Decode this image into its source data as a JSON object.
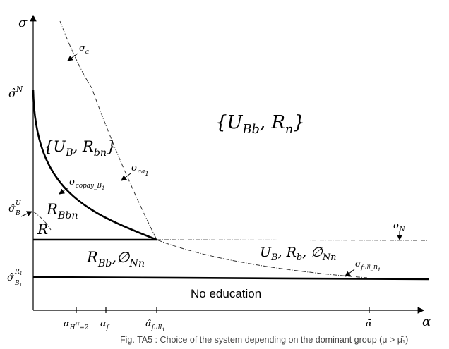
{
  "labels": {
    "sigma_axis": "σ",
    "alpha_axis": "α",
    "sigma_a": {
      "base": "σ",
      "sub": "a"
    },
    "sigma_N_hat": {
      "base": "σ̂",
      "sup": "N"
    },
    "region_UBb_Rn": {
      "open": "{",
      "base1": "U",
      "sub1": "Bb",
      "sep": ", ",
      "base2": "R",
      "sub2": "n",
      "close": "}"
    },
    "region_UB_Rbn": {
      "open": "{",
      "base1": "U",
      "sub1": "B",
      "sep": ", ",
      "base2": "R",
      "sub2": "bn",
      "close": "}"
    },
    "sigma_aa1": {
      "base": "σ",
      "sub": "aa",
      "subsub": "1"
    },
    "sigma_copay": {
      "base": "σ",
      "sub": "copay_B",
      "subsub": "1"
    },
    "region_RBbn": {
      "base": "R",
      "sub": "Bbn"
    },
    "sigma_BU_hat": {
      "base": "σ̂",
      "sup": "U",
      "sub": "B"
    },
    "region_R": "R",
    "sigma_N": {
      "base": "σ",
      "sub": "N"
    },
    "region_RBb": {
      "base1": "R",
      "sub1": "Bb",
      "sep": ",∅",
      "sub2": "Nn"
    },
    "region_UB_Rb": {
      "base1": "U",
      "sub1": "B",
      "sep1": ", ",
      "base2": "R",
      "sub2": "b",
      "sep2": ", ∅",
      "sub3": "Nn"
    },
    "sigma_full": {
      "base": "σ",
      "sub": "full_B",
      "subsub": "1"
    },
    "sigma_BR_hat": {
      "base": "σ̂",
      "sup": "R",
      "supsub": "1",
      "sub": "B",
      "subsub": "1"
    },
    "no_education": "No education"
  },
  "xticks": [
    {
      "base": "α",
      "sub": "H",
      "subsup": "U",
      "subrest": "=2"
    },
    {
      "base": "α",
      "sub": "f"
    },
    {
      "base": "α̂",
      "sub": "full",
      "subsub": "1"
    },
    {
      "base": "ᾱ"
    }
  ],
  "caption": "Fig. TA5 : Choice of the system depending on the dominant group  (μ > μ̄₁)"
}
